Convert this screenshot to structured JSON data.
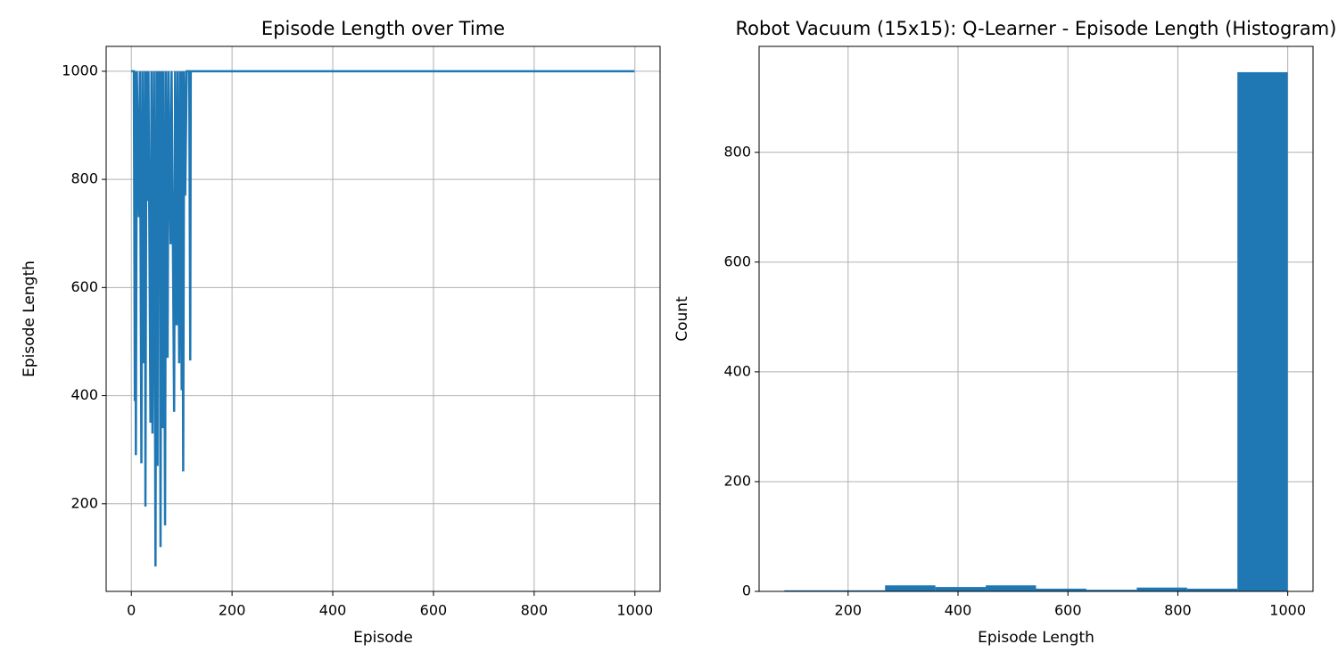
{
  "chart_data": [
    {
      "type": "line",
      "title": "Episode Length over Time",
      "x_label": "Episode",
      "y_label": "Episode Length",
      "x": [
        0,
        3,
        5,
        7,
        8,
        9,
        11,
        15,
        17,
        20,
        22,
        25,
        27,
        28,
        30,
        32,
        34,
        38,
        40,
        42,
        45,
        48,
        50,
        52,
        53,
        54,
        56,
        58,
        60,
        62,
        64,
        67,
        69,
        72,
        74,
        78,
        80,
        85,
        87,
        90,
        92,
        95,
        97,
        100,
        101,
        103,
        105,
        107,
        110,
        115,
        117,
        118,
        999
      ],
      "series": [
        {
          "name": "Episode Length",
          "color": "#1f77b4",
          "values": [
            1000,
            1000,
            1000,
            390,
            1000,
            290,
            1000,
            730,
            1000,
            275,
            1000,
            460,
            1000,
            195,
            1000,
            760,
            1000,
            350,
            1000,
            330,
            1000,
            84,
            1000,
            270,
            1000,
            625,
            1000,
            120,
            1000,
            340,
            1000,
            160,
            1000,
            470,
            1000,
            680,
            1000,
            370,
            1000,
            530,
            1000,
            460,
            1000,
            410,
            1000,
            260,
            1000,
            770,
            1000,
            1000,
            465,
            1000,
            1000
          ]
        }
      ],
      "xlim": [
        -50,
        1050
      ],
      "xticks": [
        0,
        200,
        400,
        600,
        800,
        1000
      ],
      "ylim": [
        38,
        1046
      ],
      "yticks": [
        200,
        400,
        600,
        800,
        1000
      ],
      "grid": true
    },
    {
      "type": "histogram",
      "title": "Robot Vacuum (15x15): Q-Learner - Episode Length (Histogram)",
      "x_label": "Episode Length",
      "y_label": "Count",
      "bins": [
        84,
        175.6,
        267.2,
        358.8,
        450.4,
        542,
        633.6,
        725.2,
        816.8,
        908.4,
        1000
      ],
      "counts": [
        2,
        2,
        11,
        8,
        11,
        5,
        3,
        7,
        5,
        946
      ],
      "color": "#1f77b4",
      "xlim": [
        38,
        1046
      ],
      "xticks": [
        200,
        400,
        600,
        800,
        1000
      ],
      "ylim": [
        0,
        993
      ],
      "yticks": [
        0,
        200,
        400,
        600,
        800
      ],
      "grid": true
    }
  ]
}
